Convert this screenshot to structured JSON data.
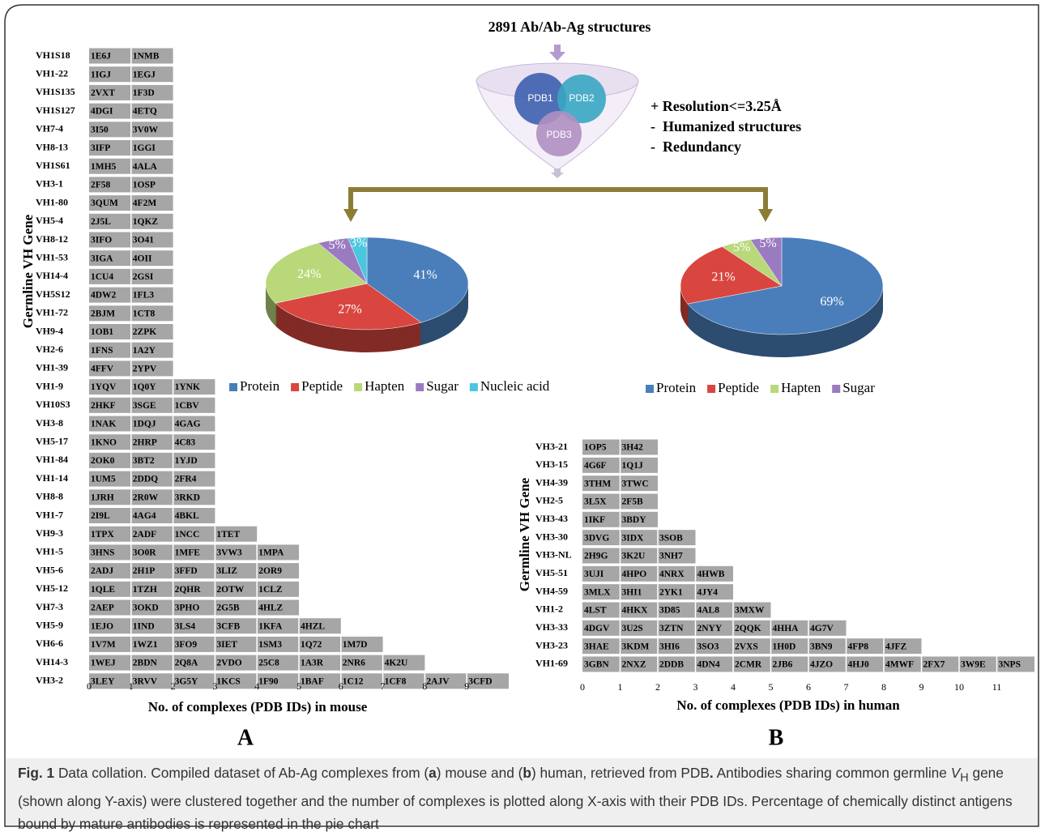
{
  "figure": {
    "funnel_title": "2891 Ab/Ab-Ag structures",
    "databases": [
      "PDB1",
      "PDB2",
      "PDB3"
    ],
    "filters": [
      "+ Resolution<=3.25Å",
      "-  Humanized structures",
      "-  Redundancy"
    ],
    "panel_labels": [
      "A",
      "B"
    ]
  },
  "chart_data": [
    {
      "type": "bar",
      "orientation": "horizontal",
      "ylabel": "Germline VH Gene",
      "xlabel": "No. of complexes (PDB IDs) in mouse",
      "color": "#a6a6a6",
      "xlim": [
        0,
        10
      ],
      "xticks": [
        0,
        1,
        2,
        3,
        4,
        5,
        6,
        7,
        8,
        9
      ],
      "categories": [
        "VH1S18",
        "VH1-22",
        "VH1S135",
        "VH1S127",
        "VH7-4",
        "VH8-13",
        "VH1S61",
        "VH3-1",
        "VH1-80",
        "VH5-4",
        "VH8-12",
        "VH1-53",
        "VH14-4",
        "VH5S12",
        "VH1-72",
        "VH9-4",
        "VH2-6",
        "VH1-39",
        "VH1-9",
        "VH10S3",
        "VH3-8",
        "VH5-17",
        "VH1-84",
        "VH1-14",
        "VH8-8",
        "VH1-7",
        "VH9-3",
        "VH1-5",
        "VH5-6",
        "VH5-12",
        "VH7-3",
        "VH5-9",
        "VH6-6",
        "VH14-3",
        "VH3-2"
      ],
      "values": [
        2,
        2,
        2,
        2,
        2,
        2,
        2,
        2,
        2,
        2,
        2,
        2,
        2,
        2,
        2,
        2,
        2,
        2,
        3,
        3,
        3,
        3,
        3,
        3,
        3,
        3,
        4,
        5,
        5,
        5,
        5,
        6,
        7,
        8,
        10
      ],
      "cell_labels": [
        [
          "1E6J",
          "1NMB"
        ],
        [
          "1IGJ",
          "1EGJ"
        ],
        [
          "2VXT",
          "1F3D"
        ],
        [
          "4DGI",
          "4ETQ"
        ],
        [
          "3I50",
          "3V0W"
        ],
        [
          "3IFP",
          "1GGI"
        ],
        [
          "1MH5",
          "4ALA"
        ],
        [
          "2F58",
          "1OSP"
        ],
        [
          "3QUM",
          "4F2M"
        ],
        [
          "2J5L",
          "1QKZ"
        ],
        [
          "3IFO",
          "3O41"
        ],
        [
          "3IGA",
          "4OII"
        ],
        [
          "1CU4",
          "2GSI"
        ],
        [
          "4DW2",
          "1FL3"
        ],
        [
          "2BJM",
          "1CT8"
        ],
        [
          "1OB1",
          "2ZPK"
        ],
        [
          "1FNS",
          "1A2Y"
        ],
        [
          "4FFV",
          "2YPV"
        ],
        [
          "1YQV",
          "1Q0Y",
          "1YNK"
        ],
        [
          "2HKF",
          "3SGE",
          "1CBV"
        ],
        [
          "1NAK",
          "1DQJ",
          "4GAG"
        ],
        [
          "1KNO",
          "2HRP",
          "4C83"
        ],
        [
          "2OK0",
          "3BT2",
          "1YJD"
        ],
        [
          "1UM5",
          "2DDQ",
          "2FR4"
        ],
        [
          "1JRH",
          "2R0W",
          "3RKD"
        ],
        [
          "2I9L",
          "4AG4",
          "4BKL"
        ],
        [
          "1TPX",
          "2ADF",
          "1NCC",
          "1TET"
        ],
        [
          "3HNS",
          "3O0R",
          "1MFE",
          "3VW3",
          "1MPA"
        ],
        [
          "2ADJ",
          "2H1P",
          "3FFD",
          "3LIZ",
          "2OR9"
        ],
        [
          "1QLE",
          "1TZH",
          "2QHR",
          "2OTW",
          "1CLZ"
        ],
        [
          "2AEP",
          "3OKD",
          "3PHO",
          "2G5B",
          "4HLZ"
        ],
        [
          "1EJO",
          "1IND",
          "3LS4",
          "3CFB",
          "1KFA",
          "4HZL"
        ],
        [
          "1V7M",
          "1WZ1",
          "3FO9",
          "3IET",
          "1SM3",
          "1Q72",
          "1M7D"
        ],
        [
          "1WEJ",
          "2BDN",
          "2Q8A",
          "2VDO",
          "25C8",
          "1A3R",
          "2NR6",
          "4K2U"
        ],
        [
          "3LEY",
          "3RVV",
          "3G5Y",
          "1KCS",
          "1F90",
          "1BAF",
          "1C12",
          "1CF8",
          "2AJV",
          "3CFD"
        ]
      ]
    },
    {
      "type": "bar",
      "orientation": "horizontal",
      "ylabel": "Germline VH Gene",
      "xlabel": "No. of complexes (PDB IDs) in human",
      "color": "#a6a6a6",
      "xlim": [
        0,
        12
      ],
      "xticks": [
        0,
        1,
        2,
        3,
        4,
        5,
        6,
        7,
        8,
        9,
        10,
        11
      ],
      "categories": [
        "VH3-21",
        "VH3-15",
        "VH4-39",
        "VH2-5",
        "VH3-43",
        "VH3-30",
        "VH3-NL",
        "VH5-51",
        "VH4-59",
        "VH1-2",
        "VH3-33",
        "VH3-23",
        "VH1-69"
      ],
      "values": [
        2,
        2,
        2,
        2,
        2,
        3,
        3,
        4,
        4,
        5,
        7,
        9,
        12
      ],
      "cell_labels": [
        [
          "1OP5",
          "3H42"
        ],
        [
          "4G6F",
          "1Q1J"
        ],
        [
          "3THM",
          "3TWC"
        ],
        [
          "3L5X",
          "2F5B"
        ],
        [
          "1IKF",
          "3BDY"
        ],
        [
          "3DVG",
          "3IDX",
          "3SOB"
        ],
        [
          "2H9G",
          "3K2U",
          "3NH7"
        ],
        [
          "3UJI",
          "4HPO",
          "4NRX",
          "4HWB"
        ],
        [
          "3MLX",
          "3HI1",
          "2YK1",
          "4JY4"
        ],
        [
          "4LST",
          "4HKX",
          "3D85",
          "4AL8",
          "3MXW"
        ],
        [
          "4DGV",
          "3U2S",
          "3ZTN",
          "2NYY",
          "2QQK",
          "4HHA",
          "4G7V"
        ],
        [
          "3HAE",
          "3KDM",
          "3HI6",
          "3SO3",
          "2VXS",
          "1H0D",
          "3BN9",
          "4FP8",
          "4JFZ"
        ],
        [
          "3GBN",
          "2NXZ",
          "2DDB",
          "4DN4",
          "2CMR",
          "2JB6",
          "4JZO",
          "4HJ0",
          "4MWF",
          "2FX7",
          "3W9E",
          "3NPS"
        ]
      ]
    },
    {
      "type": "pie",
      "legend": "bottom",
      "categories": [
        "Protein",
        "Peptide",
        "Hapten",
        "Sugar",
        "Nucleic acid"
      ],
      "values": [
        41,
        27,
        24,
        5,
        3
      ],
      "value_labels": [
        "41%",
        "27%",
        "24%",
        "5%",
        "3%"
      ],
      "colors": [
        "#4a7ebb",
        "#d9463f",
        "#b8d87a",
        "#9b7bc0",
        "#4bc6df"
      ]
    },
    {
      "type": "pie",
      "legend": "bottom",
      "categories": [
        "Protein",
        "Peptide",
        "Hapten",
        "Sugar"
      ],
      "values": [
        69,
        21,
        5,
        5
      ],
      "value_labels": [
        "69%",
        "21%",
        "5%",
        "5%"
      ],
      "colors": [
        "#4a7ebb",
        "#d9463f",
        "#b8d87a",
        "#9b7bc0"
      ]
    }
  ],
  "caption": {
    "label": "Fig. 1",
    "text": [
      "Data collation. Compiled dataset of Ab-Ag complexes from (",
      "a",
      ") mouse and (",
      "b",
      ") human, retrieved from PDB",
      ".",
      " Antibodies sharing common germline ",
      "V",
      "H",
      " gene (shown along Y-axis) were clustered together and the number of complexes is plotted along X-axis with their PDB IDs. Percentage of chemically distinct antigens bound by mature antibodies is represented in the pie chart"
    ]
  }
}
